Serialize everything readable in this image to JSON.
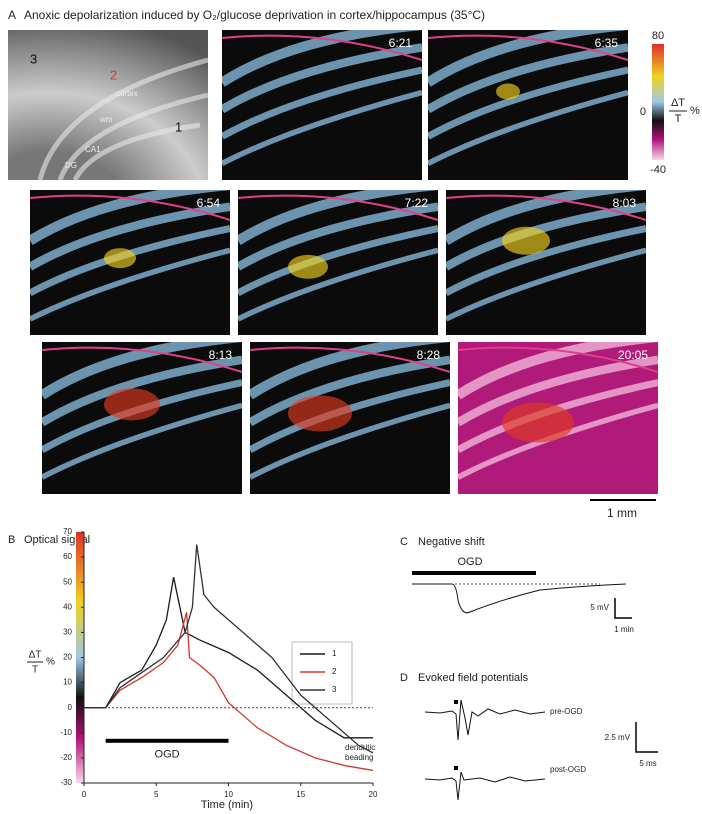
{
  "panel_a": {
    "letter": "A",
    "title": "Anoxic depolarization induced by O₂/glucose deprivation in cortex/hippocampus (35°C)",
    "atlas_labels": {
      "region_3": "3",
      "region_2": "2",
      "region_1": "1",
      "cortex": "cortex",
      "wm": "wm",
      "ca1": "CA1",
      "dg": "DG"
    },
    "frames": [
      "6:21",
      "6:35",
      "6:54",
      "7:22",
      "8:03",
      "8:13",
      "8:28",
      "20:05"
    ],
    "colorbar": {
      "max": "80",
      "zero": "0",
      "min": "-40",
      "numerator": "ΔT",
      "denominator": "T",
      "unit": "%"
    },
    "scale_bar": "1 mm"
  },
  "chart_data": {
    "type": "line",
    "letter": "B",
    "title": "Optical signal",
    "xlabel": "Time (min)",
    "ylabel": {
      "numerator": "ΔT",
      "denominator": "T",
      "unit": "%"
    },
    "xlim": [
      0,
      20
    ],
    "ylim": [
      -30,
      70
    ],
    "xticks": [
      0,
      5,
      10,
      15,
      20
    ],
    "yticks": [
      -30,
      -20,
      -10,
      0,
      10,
      20,
      30,
      40,
      50,
      60,
      70
    ],
    "ogd": {
      "label": "OGD",
      "start": 1.5,
      "end": 10
    },
    "annotation": [
      "dendritic",
      "beading"
    ],
    "series": [
      {
        "name": "1",
        "color": "#1a1a1a",
        "x": [
          0,
          1.5,
          2.5,
          4,
          5,
          5.7,
          6.2,
          7,
          8,
          10,
          12,
          14,
          16,
          18,
          20
        ],
        "values": [
          0,
          0,
          10,
          15,
          25,
          35,
          52,
          30,
          27,
          22,
          15,
          5,
          -5,
          -12,
          -12
        ]
      },
      {
        "name": "2",
        "color": "#d0392b",
        "x": [
          0,
          1.5,
          2.5,
          4,
          5.5,
          6.5,
          7.1,
          7.3,
          8,
          9,
          10,
          12,
          14,
          16,
          18,
          20
        ],
        "values": [
          0,
          0,
          7,
          12,
          18,
          25,
          38,
          20,
          17,
          12,
          2,
          -8,
          -15,
          -20,
          -23,
          -25
        ]
      },
      {
        "name": "3",
        "color": "#333333",
        "x": [
          0,
          1.5,
          2.5,
          4,
          5.5,
          7,
          7.5,
          7.8,
          8.3,
          9,
          11,
          13,
          15,
          17,
          19,
          20
        ],
        "values": [
          0,
          0,
          8,
          14,
          20,
          30,
          40,
          65,
          45,
          40,
          30,
          20,
          5,
          -5,
          -15,
          -18
        ]
      }
    ]
  },
  "panel_c": {
    "letter": "C",
    "title": "Negative shift",
    "ogd": "OGD",
    "scale_v": "5 mV",
    "scale_t": "1 min"
  },
  "panel_d": {
    "letter": "D",
    "title": "Evoked field potentials",
    "pre": "pre-OGD",
    "post": "post-OGD",
    "scale_v": "2.5 mV",
    "scale_t": "5 ms"
  }
}
